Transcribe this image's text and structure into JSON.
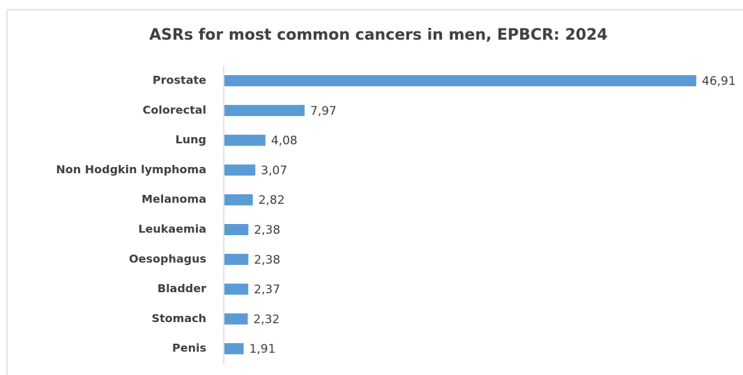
{
  "chart_data": {
    "type": "bar",
    "orientation": "horizontal",
    "title": "ASRs for most common cancers in men, EPBCR: 2024",
    "categories": [
      "Prostate",
      "Colorectal",
      "Lung",
      "Non Hodgkin lymphoma",
      "Melanoma",
      "Leukaemia",
      "Oesophagus",
      "Bladder",
      "Stomach",
      "Penis"
    ],
    "values": [
      46.91,
      7.97,
      4.08,
      3.07,
      2.82,
      2.38,
      2.38,
      2.37,
      2.32,
      1.91
    ],
    "value_labels": [
      "46,91",
      "7,97",
      "4,08",
      "3,07",
      "2,82",
      "2,38",
      "2,38",
      "2,37",
      "2,32",
      "1,91"
    ],
    "color": "#5b9bd5"
  }
}
